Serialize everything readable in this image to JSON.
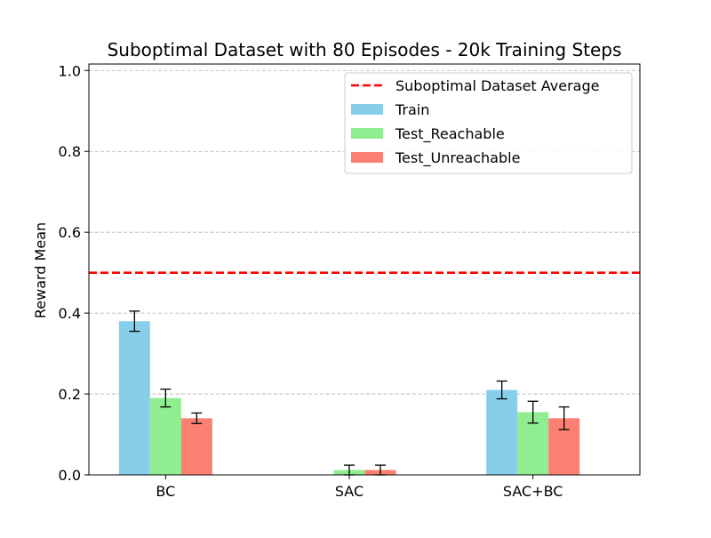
{
  "chart_data": {
    "type": "bar",
    "title": "Suboptimal Dataset with 80 Episodes - 20k Training Steps",
    "xlabel": "",
    "ylabel": "Reward Mean",
    "ylim": [
      0,
      1.0
    ],
    "yticks": [
      "0.0",
      "0.2",
      "0.4",
      "0.6",
      "0.8",
      "1.0"
    ],
    "grid": "y-dashed",
    "legend_position": "top-right",
    "categories": [
      "BC",
      "SAC",
      "SAC+BC"
    ],
    "series": [
      {
        "name": "Train",
        "color": "#87ceeb",
        "values": [
          0.38,
          0.0,
          0.21
        ],
        "errors": [
          0.025,
          0.0,
          0.022
        ]
      },
      {
        "name": "Test_Reachable",
        "color": "#90ee90",
        "values": [
          0.19,
          0.012,
          0.155
        ],
        "errors": [
          0.022,
          0.012,
          0.027
        ]
      },
      {
        "name": "Test_Unreachable",
        "color": "#fa8072",
        "values": [
          0.14,
          0.012,
          0.14
        ],
        "errors": [
          0.013,
          0.012,
          0.028
        ]
      }
    ],
    "reference_line": {
      "name": "Suboptimal Dataset Average",
      "value": 0.5,
      "color": "#ff0000",
      "style": "dashed"
    }
  }
}
